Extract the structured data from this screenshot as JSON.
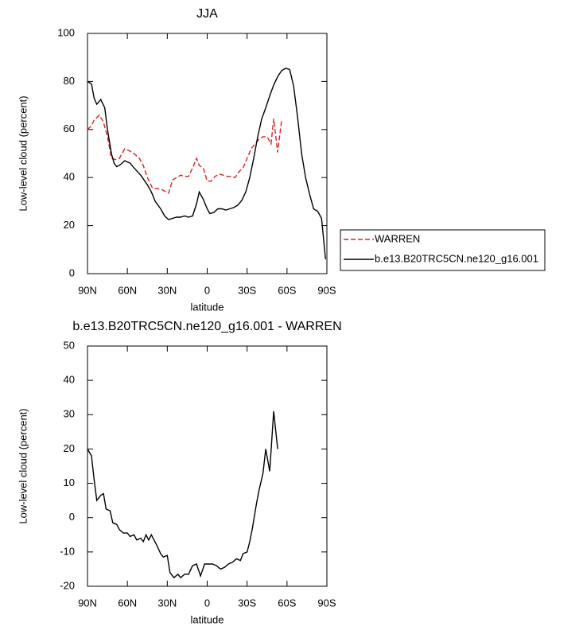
{
  "chart_data": [
    {
      "type": "line",
      "title": "JJA",
      "xlabel": "latitude",
      "ylabel": "Low-level cloud (percent)",
      "xlim": [
        90,
        -90
      ],
      "xticks": [
        {
          "value": 90,
          "label": "90N"
        },
        {
          "value": 60,
          "label": "60N"
        },
        {
          "value": 30,
          "label": "30N"
        },
        0,
        {
          "value": -30,
          "label": "30S"
        },
        {
          "value": -60,
          "label": "60S"
        },
        {
          "value": -90,
          "label": "90S"
        }
      ],
      "ylim": [
        0,
        100
      ],
      "yticks": [
        0,
        20,
        40,
        60,
        80,
        100
      ],
      "series": [
        {
          "name": "WARREN",
          "color": "#e02020",
          "dash": true,
          "x": [
            90,
            87,
            85,
            81,
            78,
            75,
            72,
            69,
            66,
            62,
            58,
            55,
            51,
            48,
            45,
            41,
            38,
            34,
            31,
            29,
            26,
            23,
            20,
            17,
            14,
            11,
            8,
            6,
            3,
            0,
            -3,
            -6,
            -9,
            -12,
            -15,
            -18,
            -21,
            -24,
            -27,
            -30,
            -33,
            -36,
            -39,
            -42,
            -45,
            -48,
            -50,
            -53,
            -56
          ],
          "values": [
            60,
            61.5,
            64,
            66,
            63,
            57,
            48,
            47.5,
            48,
            52,
            51,
            50,
            48,
            45,
            40,
            35.5,
            35.5,
            35,
            34,
            33.5,
            39,
            40,
            41,
            40.5,
            40.5,
            44,
            48,
            45,
            44,
            38.5,
            38.5,
            40.5,
            41.5,
            41,
            40.5,
            40.5,
            40,
            42.5,
            44,
            48,
            52,
            54,
            56,
            57,
            57,
            54,
            64.5,
            50.5,
            64
          ]
        },
        {
          "name": "b.e13.B20TRC5CN.ne120_g16.001",
          "color": "#000000",
          "dash": false,
          "x": [
            90,
            87,
            85,
            83,
            80,
            77,
            75,
            72,
            70,
            68,
            65,
            62,
            58,
            55,
            50,
            45,
            42,
            39,
            35,
            32,
            29,
            26,
            23,
            20,
            17,
            14,
            11,
            8,
            6,
            3,
            0,
            -2,
            -5,
            -8,
            -11,
            -14,
            -17,
            -20,
            -23,
            -26,
            -29,
            -32,
            -35,
            -38,
            -41,
            -44,
            -47,
            -50,
            -53,
            -56,
            -59,
            -62,
            -65,
            -68,
            -71,
            -74,
            -77,
            -80,
            -83,
            -86,
            -89
          ],
          "values": [
            80,
            79,
            73,
            70.5,
            72.5,
            69,
            60,
            50,
            46,
            44.5,
            45.5,
            47,
            46,
            44,
            41,
            37,
            34,
            30,
            27,
            24,
            22.5,
            23,
            23.5,
            23.5,
            24,
            23.5,
            24,
            29,
            34,
            31,
            27,
            25,
            25.5,
            27,
            27,
            26.5,
            27,
            27.5,
            28.5,
            30.5,
            34,
            40,
            48,
            57,
            64.5,
            69,
            74,
            78.5,
            82,
            84.5,
            85.5,
            85,
            78,
            65,
            50,
            40,
            33,
            27,
            26,
            23,
            6
          ]
        }
      ]
    },
    {
      "type": "line",
      "title": "b.e13.B20TRC5CN.ne120_g16.001 - WARREN",
      "xlabel": "latitude",
      "ylabel": "Low-level cloud (percent)",
      "xlim": [
        90,
        -90
      ],
      "xticks": [
        {
          "value": 90,
          "label": "90N"
        },
        {
          "value": 60,
          "label": "60N"
        },
        {
          "value": 30,
          "label": "30N"
        },
        0,
        {
          "value": -30,
          "label": "30S"
        },
        {
          "value": -60,
          "label": "60S"
        },
        {
          "value": -90,
          "label": "90S"
        }
      ],
      "ylim": [
        -20,
        50
      ],
      "yticks": [
        -20,
        -10,
        0,
        10,
        20,
        30,
        40,
        50
      ],
      "series": [
        {
          "color": "#000000",
          "dash": false,
          "x": [
            90,
            87,
            85,
            83,
            80,
            78,
            76,
            73,
            71,
            68,
            66,
            63,
            60,
            58,
            55,
            53,
            50,
            48,
            46,
            44,
            42,
            40,
            38,
            35,
            33,
            30,
            28,
            25,
            22,
            20,
            17,
            14,
            11,
            8,
            5,
            2,
            -1,
            -4,
            -7,
            -10,
            -13,
            -16,
            -19,
            -22,
            -25,
            -27,
            -30,
            -32,
            -34,
            -37,
            -39,
            -42,
            -44,
            -47,
            -50,
            -53
          ],
          "values": [
            20,
            18,
            11,
            5,
            6.5,
            7,
            2.5,
            2,
            -1.5,
            -2,
            -3.5,
            -4.5,
            -4.5,
            -5.5,
            -5,
            -6.5,
            -6,
            -7,
            -5,
            -6.5,
            -5,
            -6.5,
            -8,
            -10.5,
            -11.5,
            -11,
            -16,
            -17.5,
            -16.5,
            -17.5,
            -16.5,
            -16.5,
            -14,
            -13.5,
            -17,
            -13.5,
            -13.5,
            -13.5,
            -14,
            -15,
            -14.5,
            -13.5,
            -13,
            -12,
            -12.5,
            -10.5,
            -10,
            -7,
            -3,
            4,
            8,
            13,
            20,
            13.5,
            31,
            20
          ]
        }
      ]
    }
  ]
}
